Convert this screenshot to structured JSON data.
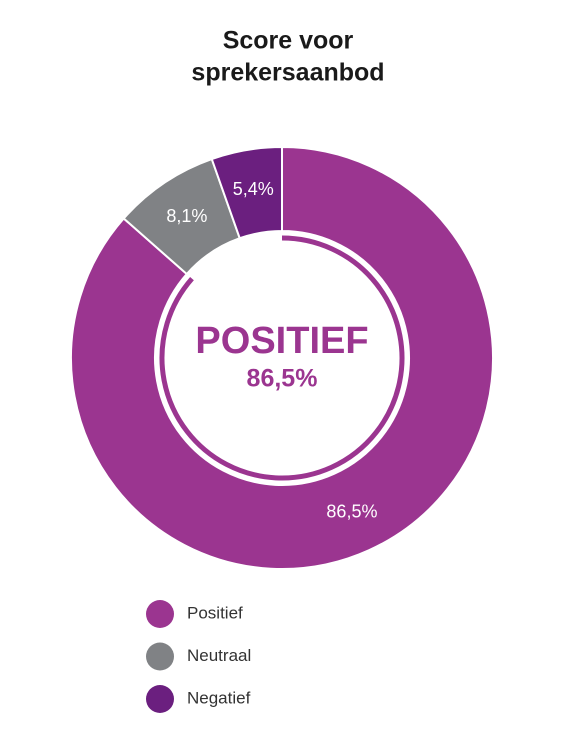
{
  "chart_data": {
    "type": "donut",
    "title": [
      "Score voor",
      "sprekersaanbod"
    ],
    "categories": [
      "Positief",
      "Neutraal",
      "Negatief"
    ],
    "values": [
      86.5,
      8.1,
      5.4
    ],
    "value_labels": [
      "86,5%",
      "8,1%",
      "5,4%"
    ],
    "colors": [
      "#9b3590",
      "#808285",
      "#6b1f7f"
    ],
    "center_label": "POSITIEF",
    "legend": "bottom"
  }
}
